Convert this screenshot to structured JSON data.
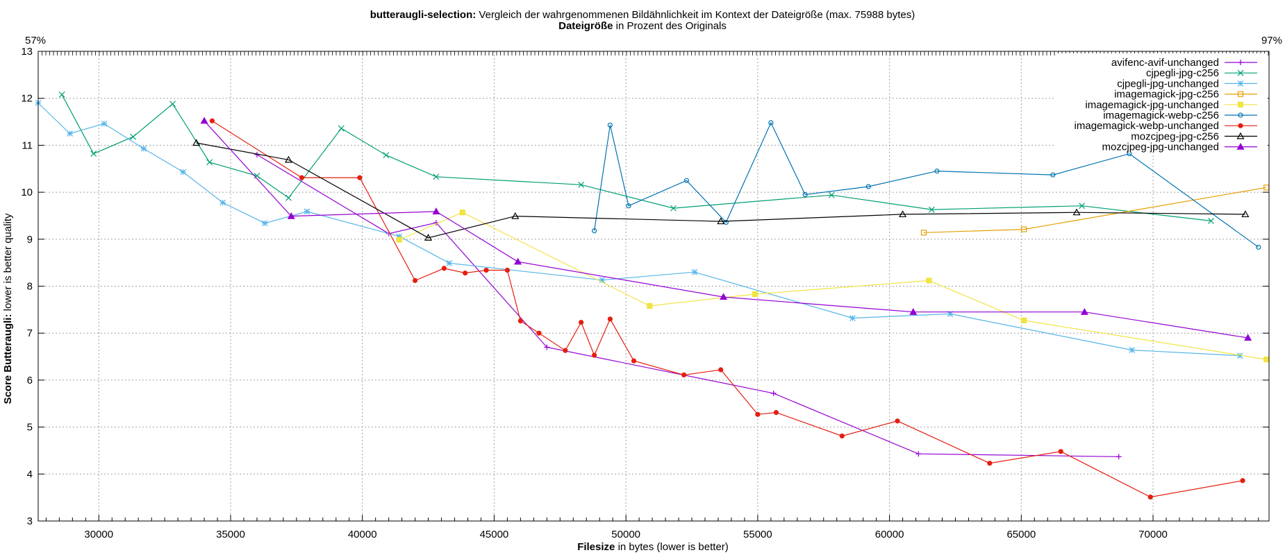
{
  "chart_data": {
    "type": "line",
    "title_bold": "butteraugli-selection:",
    "title_rest": "Vergleich der wahrgenommenen Bildähnlichkeit im Kontext der Dateigröße (max. 75988 bytes)",
    "subtitle_bold": "Dateigröße",
    "subtitle_rest": "in Prozent des Originals",
    "xlabel_bold": "Filesize",
    "xlabel_rest": "in bytes (lower is better)",
    "ylabel_bold": "Score Butteraugli:",
    "ylabel_rest": "lower is better quality",
    "top_axis_left_label": "57%",
    "top_axis_right_label": "97%",
    "xlim": [
      27700,
      74400
    ],
    "ylim": [
      3,
      13
    ],
    "xticks": [
      30000,
      35000,
      40000,
      45000,
      50000,
      55000,
      60000,
      65000,
      70000
    ],
    "yticks": [
      3,
      4,
      5,
      6,
      7,
      8,
      9,
      10,
      11,
      12,
      13
    ],
    "grid": true,
    "legend_position": "top-right",
    "series": [
      {
        "name": "avifenc-avif-unchanged",
        "color": "#9400d3",
        "marker": "plus",
        "points": [
          [
            36000,
            10.8
          ],
          [
            41000,
            9.12
          ],
          [
            42800,
            9.35
          ],
          [
            47000,
            6.7
          ],
          [
            55600,
            5.72
          ],
          [
            61100,
            4.43
          ],
          [
            68700,
            4.37
          ]
        ]
      },
      {
        "name": "cjpegli-jpg-c256",
        "color": "#009e73",
        "marker": "cross",
        "points": [
          [
            28600,
            12.08
          ],
          [
            29800,
            10.82
          ],
          [
            31300,
            11.18
          ],
          [
            32800,
            11.88
          ],
          [
            34200,
            10.64
          ],
          [
            36000,
            10.35
          ],
          [
            37200,
            9.88
          ],
          [
            39200,
            11.36
          ],
          [
            40900,
            10.79
          ],
          [
            42800,
            10.33
          ],
          [
            48300,
            10.16
          ],
          [
            51800,
            9.66
          ],
          [
            57800,
            9.94
          ],
          [
            61600,
            9.63
          ],
          [
            67300,
            9.71
          ],
          [
            72200,
            9.39
          ]
        ]
      },
      {
        "name": "cjpegli-jpg-unchanged",
        "color": "#56b4e9",
        "marker": "star",
        "points": [
          [
            27700,
            11.9
          ],
          [
            28900,
            11.25
          ],
          [
            30200,
            11.46
          ],
          [
            31700,
            10.93
          ],
          [
            33200,
            10.43
          ],
          [
            34700,
            9.78
          ],
          [
            36300,
            9.34
          ],
          [
            37900,
            9.59
          ],
          [
            41400,
            9.06
          ],
          [
            43300,
            8.49
          ],
          [
            49100,
            8.13
          ],
          [
            52600,
            8.3
          ],
          [
            58600,
            7.32
          ],
          [
            62300,
            7.41
          ],
          [
            69200,
            6.64
          ],
          [
            73300,
            6.52
          ]
        ]
      },
      {
        "name": "imagemagick-jpg-c256",
        "color": "#e69f00",
        "marker": "square",
        "points": [
          [
            61300,
            9.14
          ],
          [
            65100,
            9.21
          ],
          [
            74300,
            10.1
          ]
        ]
      },
      {
        "name": "imagemagick-jpg-unchanged",
        "color": "#f0e442",
        "marker": "square-filled",
        "points": [
          [
            41400,
            8.99
          ],
          [
            43800,
            9.57
          ],
          [
            50900,
            7.58
          ],
          [
            54900,
            7.83
          ],
          [
            61500,
            8.12
          ],
          [
            65100,
            7.27
          ],
          [
            74300,
            6.44
          ]
        ]
      },
      {
        "name": "imagemagick-webp-c256",
        "color": "#0072b2",
        "marker": "circle",
        "points": [
          [
            48800,
            9.18
          ],
          [
            49400,
            11.43
          ],
          [
            50100,
            9.71
          ],
          [
            52300,
            10.25
          ],
          [
            53800,
            9.36
          ],
          [
            55500,
            11.48
          ],
          [
            56800,
            9.95
          ],
          [
            59200,
            10.12
          ],
          [
            61800,
            10.45
          ],
          [
            66200,
            10.37
          ],
          [
            69100,
            10.82
          ],
          [
            74000,
            8.83
          ]
        ]
      },
      {
        "name": "imagemagick-webp-unchanged",
        "color": "#e51e10",
        "marker": "circle-filled",
        "points": [
          [
            34300,
            11.52
          ],
          [
            37700,
            10.31
          ],
          [
            39900,
            10.31
          ],
          [
            42000,
            8.12
          ],
          [
            43100,
            8.38
          ],
          [
            43900,
            8.28
          ],
          [
            44700,
            8.34
          ],
          [
            45500,
            8.34
          ],
          [
            46000,
            7.26
          ],
          [
            46700,
            7.0
          ],
          [
            47700,
            6.63
          ],
          [
            48300,
            7.23
          ],
          [
            48800,
            6.53
          ],
          [
            49400,
            7.3
          ],
          [
            50300,
            6.41
          ],
          [
            52200,
            6.11
          ],
          [
            53600,
            6.22
          ],
          [
            55000,
            5.27
          ],
          [
            55700,
            5.31
          ],
          [
            58200,
            4.81
          ],
          [
            60300,
            5.13
          ],
          [
            63800,
            4.23
          ],
          [
            66500,
            4.48
          ],
          [
            69900,
            3.51
          ],
          [
            73400,
            3.86
          ]
        ]
      },
      {
        "name": "mozcjpeg-jpg-c256",
        "color": "#000000",
        "marker": "triangle",
        "points": [
          [
            33700,
            11.05
          ],
          [
            37200,
            10.69
          ],
          [
            42500,
            9.03
          ],
          [
            45800,
            9.49
          ],
          [
            53600,
            9.38
          ],
          [
            60500,
            9.53
          ],
          [
            67100,
            9.57
          ],
          [
            73500,
            9.53
          ]
        ]
      },
      {
        "name": "mozcjpeg-jpg-unchanged",
        "color": "#9400d3",
        "marker": "triangle-filled",
        "points": [
          [
            34000,
            11.52
          ],
          [
            37300,
            9.49
          ],
          [
            42800,
            9.59
          ],
          [
            45900,
            8.52
          ],
          [
            53700,
            7.77
          ],
          [
            60900,
            7.45
          ],
          [
            67400,
            7.45
          ],
          [
            73600,
            6.9
          ]
        ]
      }
    ]
  }
}
